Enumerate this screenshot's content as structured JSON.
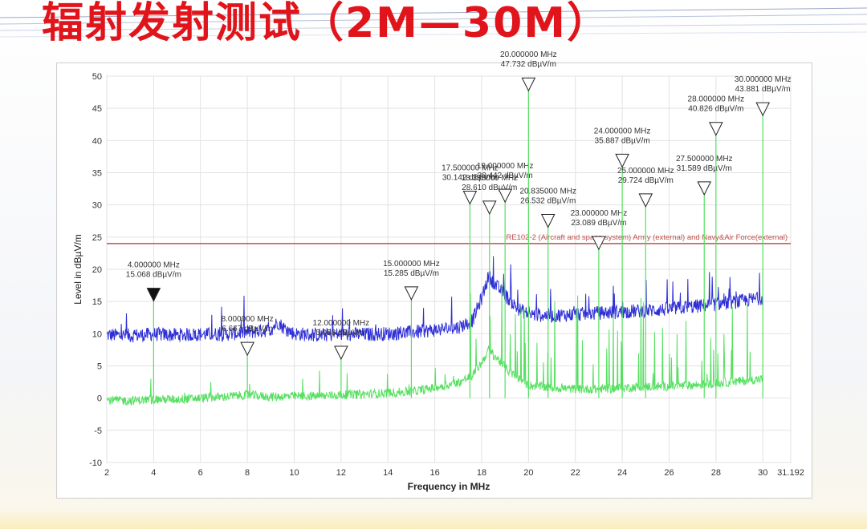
{
  "slide": {
    "title": "辐射发射测试（2M—30M）"
  },
  "chart_data": {
    "type": "line",
    "xlabel": "Frequency in MHz",
    "ylabel": "Level in dBµV/m",
    "xlim": [
      2,
      31.192
    ],
    "ylim": [
      -10,
      50
    ],
    "x_ticks": [
      "2",
      "4",
      "6",
      "8",
      "10",
      "12",
      "14",
      "16",
      "18",
      "20",
      "22",
      "24",
      "26",
      "28",
      "30",
      "31.192"
    ],
    "y_ticks": [
      "-10",
      "-5",
      "0",
      "5",
      "10",
      "15",
      "20",
      "25",
      "30",
      "35",
      "40",
      "45",
      "50"
    ],
    "grid": true,
    "limit_line": {
      "label": "RE102-2 (Aircraft and space system) Army (external) and Navy&Air Force(external)",
      "value": 24,
      "color": "#c0504d"
    },
    "series": [
      {
        "color": "#2f2fd8",
        "points": [
          [
            2,
            9.8
          ],
          [
            3,
            9.7
          ],
          [
            4,
            9.9
          ],
          [
            5,
            9.8
          ],
          [
            6,
            9.9
          ],
          [
            7,
            9.9
          ],
          [
            8,
            10.2
          ],
          [
            9,
            10.6
          ],
          [
            9.3,
            11.8
          ],
          [
            9.6,
            10.8
          ],
          [
            10,
            10.0
          ],
          [
            11,
            9.8
          ],
          [
            12,
            9.9
          ],
          [
            13,
            9.9
          ],
          [
            14,
            10.0
          ],
          [
            15,
            10.2
          ],
          [
            16,
            10.6
          ],
          [
            17,
            11.0
          ],
          [
            17.6,
            12.0
          ],
          [
            18,
            15.5
          ],
          [
            18.3,
            19.0
          ],
          [
            18.6,
            17.5
          ],
          [
            19,
            16.0
          ],
          [
            19.5,
            14.0
          ],
          [
            20,
            13.0
          ],
          [
            21,
            12.8
          ],
          [
            22,
            13.0
          ],
          [
            23,
            13.2
          ],
          [
            24,
            13.4
          ],
          [
            25,
            13.6
          ],
          [
            26,
            13.8
          ],
          [
            27,
            14.2
          ],
          [
            28,
            14.6
          ],
          [
            29,
            15.0
          ],
          [
            30,
            15.6
          ]
        ]
      },
      {
        "color": "#55e060",
        "points": [
          [
            2,
            -0.3
          ],
          [
            3,
            -0.4
          ],
          [
            4,
            -0.2
          ],
          [
            5,
            -0.2
          ],
          [
            6,
            0.0
          ],
          [
            7,
            0.2
          ],
          [
            8,
            0.5
          ],
          [
            9,
            0.2
          ],
          [
            10,
            0.3
          ],
          [
            11,
            0.3
          ],
          [
            12,
            0.5
          ],
          [
            13,
            0.6
          ],
          [
            14,
            0.8
          ],
          [
            15,
            1.0
          ],
          [
            16,
            1.6
          ],
          [
            17,
            2.4
          ],
          [
            17.6,
            3.5
          ],
          [
            18,
            5.5
          ],
          [
            18.3,
            7.5
          ],
          [
            18.7,
            6.0
          ],
          [
            19.2,
            4.0
          ],
          [
            20,
            2.0
          ],
          [
            21,
            1.6
          ],
          [
            22,
            1.4
          ],
          [
            23,
            1.4
          ],
          [
            24,
            1.6
          ],
          [
            25,
            1.8
          ],
          [
            26,
            1.8
          ],
          [
            27,
            2.0
          ],
          [
            28,
            2.3
          ],
          [
            29,
            2.6
          ],
          [
            30,
            3.0
          ]
        ]
      }
    ],
    "markers": [
      {
        "freq": "4.000000 MHz",
        "level": "15.068 dBµV/m",
        "x": 4,
        "y": 15.068,
        "filled": true
      },
      {
        "freq": "8.000000 MHz",
        "level": "6.667 dBµV/m",
        "x": 8,
        "y": 6.667,
        "filled": false
      },
      {
        "freq": "12.000000 MHz",
        "level": "6.058 dBµV/m",
        "x": 12,
        "y": 6.058,
        "filled": false
      },
      {
        "freq": "15.000000 MHz",
        "level": "15.285 dBµV/m",
        "x": 15,
        "y": 15.285,
        "filled": false
      },
      {
        "freq": "17.500000 MHz",
        "level": "30.142 dBµV/m",
        "x": 17.5,
        "y": 30.142,
        "filled": false
      },
      {
        "freq": "18.335000 MHz",
        "level": "28.610 dBµV/m",
        "x": 18.335,
        "y": 28.61,
        "filled": false
      },
      {
        "freq": "19.000000 MHz",
        "level": "30.442 dBµV/m",
        "x": 19,
        "y": 30.442,
        "filled": false
      },
      {
        "freq": "20.000000 MHz",
        "level": "47.732 dBµV/m",
        "x": 20,
        "y": 47.732,
        "filled": false
      },
      {
        "freq": "20.835000 MHz",
        "level": "26.532 dBµV/m",
        "x": 20.835,
        "y": 26.532,
        "filled": false
      },
      {
        "freq": "23.000000 MHz",
        "level": "23.089 dBµV/m",
        "x": 23,
        "y": 23.089,
        "filled": false
      },
      {
        "freq": "24.000000 MHz",
        "level": "35.887 dBµV/m",
        "x": 24,
        "y": 35.887,
        "filled": false
      },
      {
        "freq": "25.000000 MHz",
        "level": "29.724 dBµV/m",
        "x": 25,
        "y": 29.724,
        "filled": false
      },
      {
        "freq": "27.500000 MHz",
        "level": "31.589 dBµV/m",
        "x": 27.5,
        "y": 31.589,
        "filled": false
      },
      {
        "freq": "28.000000 MHz",
        "level": "40.826 dBµV/m",
        "x": 28,
        "y": 40.826,
        "filled": false
      },
      {
        "freq": "30.000000 MHz",
        "level": "43.881 dBµV/m",
        "x": 30,
        "y": 43.881,
        "filled": false
      }
    ]
  }
}
